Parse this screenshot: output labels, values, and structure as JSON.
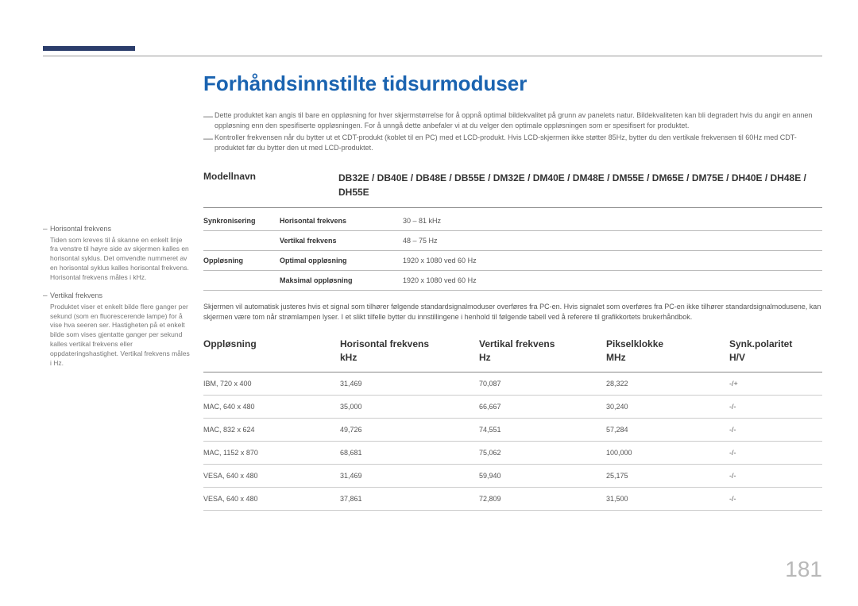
{
  "page_number": "181",
  "colors": {
    "heading": "#1a63b0",
    "bar": "#2b3d6b",
    "text": "#4a4a4a",
    "muted": "#777",
    "rule": "#888"
  },
  "title": "Forhåndsinnstilte tidsurmoduser",
  "intro_notes": [
    "Dette produktet kan angis til bare en oppløsning for hver skjermstørrelse for å oppnå optimal bildekvalitet på grunn av panelets natur. Bildekvaliteten kan bli degradert hvis du angir en annen oppløsning enn den spesifiserte oppløsningen. For å unngå dette anbefaler vi at du velger den optimale oppløsningen som er spesifisert for produktet.",
    "Kontroller frekvensen når du bytter ut et CDT-produkt (koblet til en PC) med et LCD-produkt. Hvis LCD-skjermen ikke støtter 85Hz, bytter du den vertikale frekvensen til 60Hz med CDT-produktet før du bytter den ut med LCD-produktet."
  ],
  "model": {
    "label": "Modellnavn",
    "value": "DB32E / DB40E / DB48E / DB55E / DM32E / DM40E / DM48E / DM55E / DM65E / DM75E / DH40E / DH48E / DH55E"
  },
  "specs": [
    {
      "c1": "Synkronisering",
      "c2": "Horisontal frekvens",
      "c3": "30 – 81 kHz"
    },
    {
      "c1": "",
      "c2": "Vertikal frekvens",
      "c3": "48 – 75 Hz"
    },
    {
      "c1": "Oppløsning",
      "c2": "Optimal oppløsning",
      "c3": "1920 x 1080 ved 60 Hz"
    },
    {
      "c1": "",
      "c2": "Maksimal oppløsning",
      "c3": "1920 x 1080 ved 60 Hz"
    }
  ],
  "mid_para": "Skjermen vil automatisk justeres hvis et signal som tilhører følgende standardsignalmoduser overføres fra PC-en. Hvis signalet som overføres fra PC-en ikke tilhører standardsignalmodusene, kan skjermen være tom når strømlampen lyser. I et slikt tilfelle bytter du innstillingene i henhold til følgende tabell ved å referere til grafikkortets brukerhåndbok.",
  "timing": {
    "headers": {
      "res": "Oppløsning",
      "hfreq": "Horisontal frekvens",
      "hfreq_unit": "kHz",
      "vfreq": "Vertikal frekvens",
      "vfreq_unit": "Hz",
      "pclk": "Pikselklokke",
      "pclk_unit": "MHz",
      "pol": "Synk.polaritet",
      "pol_unit": "H/V"
    },
    "rows": [
      {
        "res": "IBM, 720 x 400",
        "h": "31,469",
        "v": "70,087",
        "p": "28,322",
        "s": "-/+"
      },
      {
        "res": "MAC, 640 x 480",
        "h": "35,000",
        "v": "66,667",
        "p": "30,240",
        "s": "-/-"
      },
      {
        "res": "MAC, 832 x 624",
        "h": "49,726",
        "v": "74,551",
        "p": "57,284",
        "s": "-/-"
      },
      {
        "res": "MAC, 1152 x 870",
        "h": "68,681",
        "v": "75,062",
        "p": "100,000",
        "s": "-/-"
      },
      {
        "res": "VESA, 640 x 480",
        "h": "31,469",
        "v": "59,940",
        "p": "25,175",
        "s": "-/-"
      },
      {
        "res": "VESA, 640 x 480",
        "h": "37,861",
        "v": "72,809",
        "p": "31,500",
        "s": "-/-"
      }
    ]
  },
  "sidebar": [
    {
      "title": "Horisontal frekvens",
      "body": "Tiden som kreves til å skanne en enkelt linje fra venstre til høyre side av skjermen kalles en horisontal syklus. Det omvendte nummeret av en horisontal syklus kalles horisontal frekvens. Horisontal frekvens måles i kHz."
    },
    {
      "title": "Vertikal frekvens",
      "body": "Produktet viser et enkelt bilde flere ganger per sekund (som en fluorescerende lampe) for å vise hva seeren ser. Hastigheten på et enkelt bilde som vises gjentatte ganger per sekund kalles vertikal frekvens eller oppdateringshastighet. Vertikal frekvens måles i Hz."
    }
  ]
}
